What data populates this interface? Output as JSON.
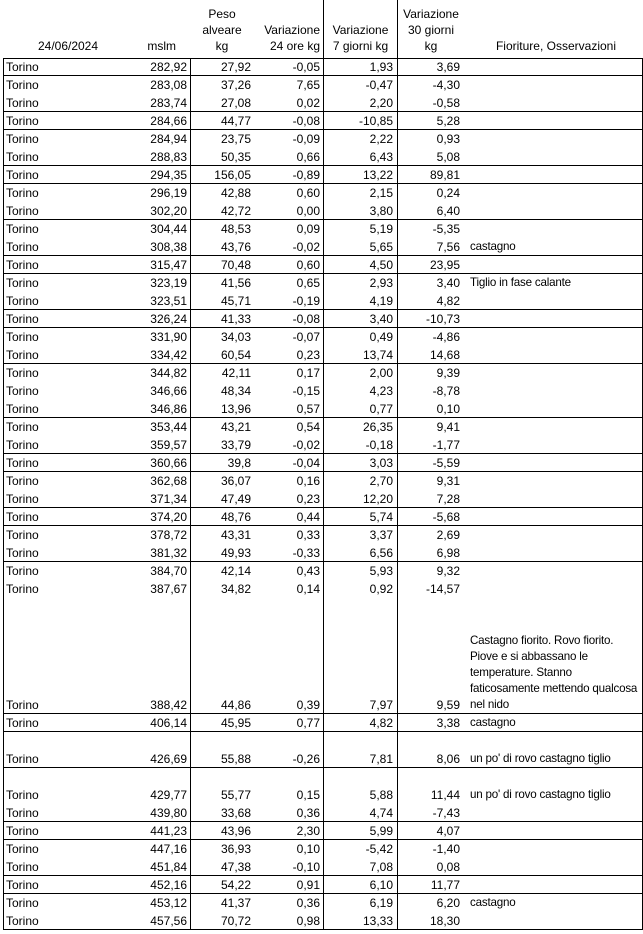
{
  "header": {
    "date": "24/06/2024",
    "mslm": "mslm",
    "peso": "Peso\nalveare\nkg",
    "var24": "Variazione\n24 ore kg",
    "var7": "Variazione\n7 giorni kg",
    "var30": "Variazione\n30 giorni\nkg",
    "notes": "Fioriture, Osservazioni"
  },
  "groups": [
    [
      [
        "Torino",
        "282,92",
        "27,92",
        "-0,05",
        "1,93",
        "3,69",
        ""
      ]
    ],
    [
      [
        "Torino",
        "283,08",
        "37,26",
        "7,65",
        "-0,47",
        "-4,30",
        ""
      ],
      [
        "Torino",
        "283,74",
        "27,08",
        "0,02",
        "2,20",
        "-0,58",
        ""
      ]
    ],
    [
      [
        "Torino",
        "284,66",
        "44,77",
        "-0,08",
        "-10,85",
        "5,28",
        ""
      ]
    ],
    [
      [
        "Torino",
        "284,94",
        "23,75",
        "-0,09",
        "2,22",
        "0,93",
        ""
      ],
      [
        "Torino",
        "288,83",
        "50,35",
        "0,66",
        "6,43",
        "5,08",
        ""
      ]
    ],
    [
      [
        "Torino",
        "294,35",
        "156,05",
        "-0,89",
        "13,22",
        "89,81",
        ""
      ]
    ],
    [
      [
        "Torino",
        "296,19",
        "42,88",
        "0,60",
        "2,15",
        "0,24",
        ""
      ],
      [
        "Torino",
        "302,20",
        "42,72",
        "0,00",
        "3,80",
        "6,40",
        ""
      ]
    ],
    [
      [
        "Torino",
        "304,44",
        "48,53",
        "0,09",
        "5,19",
        "-5,35",
        ""
      ],
      [
        "Torino",
        "308,38",
        "43,76",
        "-0,02",
        "5,65",
        "7,56",
        "castagno"
      ]
    ],
    [
      [
        "Torino",
        "315,47",
        "70,48",
        "0,60",
        "4,50",
        "23,95",
        ""
      ]
    ],
    [
      [
        "Torino",
        "323,19",
        "41,56",
        "0,65",
        "2,93",
        "3,40",
        "Tiglio in fase calante"
      ],
      [
        "Torino",
        "323,51",
        "45,71",
        "-0,19",
        "4,19",
        "4,82",
        ""
      ]
    ],
    [
      [
        "Torino",
        "326,24",
        "41,33",
        "-0,08",
        "3,40",
        "-10,73",
        ""
      ]
    ],
    [
      [
        "Torino",
        "331,90",
        "34,03",
        "-0,07",
        "0,49",
        "-4,86",
        ""
      ],
      [
        "Torino",
        "334,42",
        "60,54",
        "0,23",
        "13,74",
        "14,68",
        ""
      ]
    ],
    [
      [
        "Torino",
        "344,82",
        "42,11",
        "0,17",
        "2,00",
        "9,39",
        ""
      ],
      [
        "Torino",
        "346,66",
        "48,34",
        "-0,15",
        "4,23",
        "-8,78",
        ""
      ],
      [
        "Torino",
        "346,86",
        "13,96",
        "0,57",
        "0,77",
        "0,10",
        ""
      ]
    ],
    [
      [
        "Torino",
        "353,44",
        "43,21",
        "0,54",
        "26,35",
        "9,41",
        ""
      ],
      [
        "Torino",
        "359,57",
        "33,79",
        "-0,02",
        "-0,18",
        "-1,77",
        ""
      ]
    ],
    [
      [
        "Torino",
        "360,66",
        "39,8",
        "-0,04",
        "3,03",
        "-5,59",
        ""
      ]
    ],
    [
      [
        "Torino",
        "362,68",
        "36,07",
        "0,16",
        "2,70",
        "9,31",
        ""
      ],
      [
        "Torino",
        "371,34",
        "47,49",
        "0,23",
        "12,20",
        "7,28",
        ""
      ]
    ],
    [
      [
        "Torino",
        "374,20",
        "48,76",
        "0,44",
        "5,74",
        "-5,68",
        ""
      ]
    ],
    [
      [
        "Torino",
        "378,72",
        "43,31",
        "0,33",
        "3,37",
        "2,69",
        ""
      ],
      [
        "Torino",
        "381,32",
        "49,93",
        "-0,33",
        "6,56",
        "6,98",
        ""
      ]
    ],
    [
      [
        "Torino",
        "384,70",
        "42,14",
        "0,43",
        "5,93",
        "9,32",
        ""
      ],
      [
        "Torino",
        "387,67",
        "34,82",
        "0,14",
        "0,92",
        "-14,57",
        ""
      ],
      [
        "Torino",
        "388,42",
        "44,86",
        "0,39",
        "7,97",
        "9,59",
        "Castagno fiorito. Rovo fiorito. Piove e si abbassano le temperature. Stanno faticosamente mettendo qualcosa nel nido"
      ]
    ],
    [
      [
        "Torino",
        "406,14",
        "45,95",
        "0,77",
        "4,82",
        "3,38",
        "castagno"
      ]
    ],
    [
      [
        "Torino",
        "426,69",
        "55,88",
        "-0,26",
        "7,81",
        "8,06",
        "un po' di rovo castagno tiglio"
      ]
    ],
    [
      [
        "Torino",
        "429,77",
        "55,77",
        "0,15",
        "5,88",
        "11,44",
        "un po' di rovo castagno tiglio"
      ],
      [
        "Torino",
        "439,80",
        "33,68",
        "0,36",
        "4,74",
        "-7,43",
        ""
      ]
    ],
    [
      [
        "Torino",
        "441,23",
        "43,96",
        "2,30",
        "5,99",
        "4,07",
        ""
      ]
    ],
    [
      [
        "Torino",
        "447,16",
        "36,93",
        "0,10",
        "-5,42",
        "-1,40",
        ""
      ],
      [
        "Torino",
        "451,84",
        "47,38",
        "-0,10",
        "7,08",
        "0,08",
        ""
      ]
    ],
    [
      [
        "Torino",
        "452,16",
        "54,22",
        "0,91",
        "6,10",
        "11,77",
        ""
      ]
    ],
    [
      [
        "Torino",
        "453,12",
        "41,37",
        "0,36",
        "6,19",
        "6,20",
        "castagno"
      ],
      [
        "Torino",
        "457,56",
        "70,72",
        "0,98",
        "13,33",
        "18,30",
        ""
      ]
    ]
  ]
}
